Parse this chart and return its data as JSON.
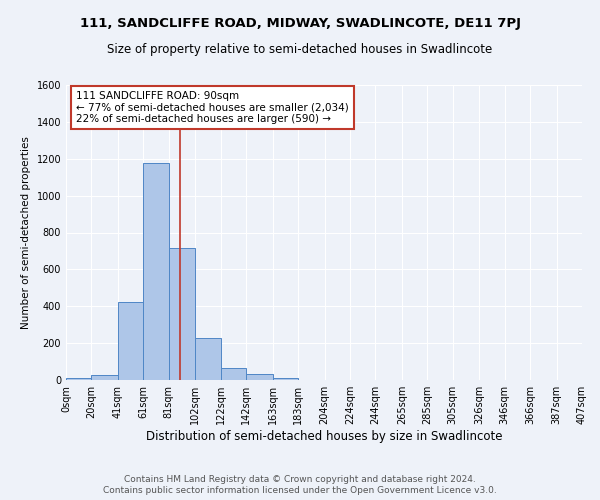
{
  "title1": "111, SANDCLIFFE ROAD, MIDWAY, SWADLINCOTE, DE11 7PJ",
  "title2": "Size of property relative to semi-detached houses in Swadlincote",
  "xlabel": "Distribution of semi-detached houses by size in Swadlincote",
  "ylabel": "Number of semi-detached properties",
  "footnote1": "Contains HM Land Registry data © Crown copyright and database right 2024.",
  "footnote2": "Contains public sector information licensed under the Open Government Licence v3.0.",
  "annotation_title": "111 SANDCLIFFE ROAD: 90sqm",
  "annotation_line1": "← 77% of semi-detached houses are smaller (2,034)",
  "annotation_line2": "22% of semi-detached houses are larger (590) →",
  "property_size": 90,
  "bin_edges": [
    0,
    20,
    41,
    61,
    81,
    102,
    122,
    142,
    163,
    183,
    204,
    224,
    244,
    265,
    285,
    305,
    326,
    346,
    366,
    387,
    407
  ],
  "bin_labels": [
    "0sqm",
    "20sqm",
    "41sqm",
    "61sqm",
    "81sqm",
    "102sqm",
    "122sqm",
    "142sqm",
    "163sqm",
    "183sqm",
    "204sqm",
    "224sqm",
    "244sqm",
    "265sqm",
    "285sqm",
    "305sqm",
    "326sqm",
    "346sqm",
    "366sqm",
    "387sqm",
    "407sqm"
  ],
  "counts": [
    10,
    28,
    425,
    1175,
    715,
    230,
    65,
    30,
    13,
    0,
    0,
    0,
    0,
    0,
    0,
    0,
    0,
    0,
    0,
    0
  ],
  "bar_color": "#aec6e8",
  "bar_edge_color": "#4f86c6",
  "vline_color": "#c0392b",
  "vline_x": 90,
  "ylim": [
    0,
    1600
  ],
  "yticks": [
    0,
    200,
    400,
    600,
    800,
    1000,
    1200,
    1400,
    1600
  ],
  "background_color": "#eef2f9",
  "grid_color": "#ffffff",
  "title1_fontsize": 9.5,
  "title2_fontsize": 8.5,
  "xlabel_fontsize": 8.5,
  "ylabel_fontsize": 7.5,
  "tick_fontsize": 7,
  "footnote_fontsize": 6.5,
  "annotation_fontsize": 7.5,
  "annotation_box_color": "#ffffff",
  "annotation_border_color": "#c0392b"
}
